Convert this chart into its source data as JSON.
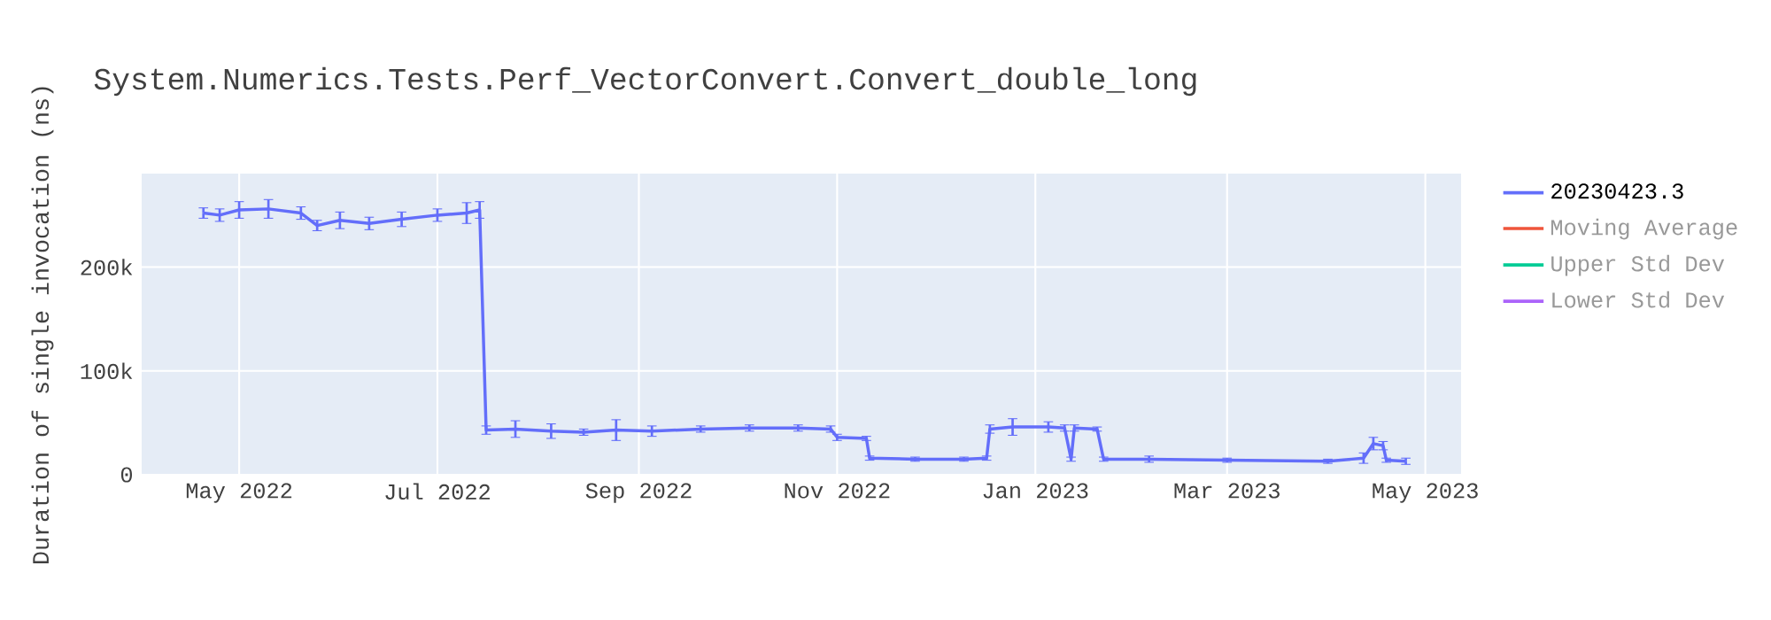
{
  "chart_data": {
    "type": "line",
    "title": "System.Numerics.Tests.Perf_VectorConvert.Convert_double_long",
    "ylabel": "Duration of single invocation (ns)",
    "x": [
      "2022-04-20",
      "2022-04-25",
      "2022-05-01",
      "2022-05-10",
      "2022-05-20",
      "2022-05-25",
      "2022-06-01",
      "2022-06-10",
      "2022-06-20",
      "2022-07-01",
      "2022-07-10",
      "2022-07-14",
      "2022-07-16",
      "2022-07-25",
      "2022-08-05",
      "2022-08-15",
      "2022-08-25",
      "2022-09-05",
      "2022-09-20",
      "2022-10-05",
      "2022-10-20",
      "2022-10-30",
      "2022-11-01",
      "2022-11-10",
      "2022-11-11",
      "2022-11-25",
      "2022-12-10",
      "2022-12-17",
      "2022-12-18",
      "2022-12-25",
      "2023-01-05",
      "2023-01-10",
      "2023-01-12",
      "2023-01-13",
      "2023-01-20",
      "2023-01-22",
      "2023-02-05",
      "2023-03-01",
      "2023-04-01",
      "2023-04-12",
      "2023-04-15",
      "2023-04-18",
      "2023-04-19",
      "2023-04-25"
    ],
    "series": [
      {
        "name": "20230423.3",
        "color": "#636efa",
        "values": [
          252000,
          250000,
          255000,
          256000,
          252000,
          240000,
          245000,
          242000,
          246000,
          250000,
          252000,
          255000,
          43000,
          44000,
          42000,
          41000,
          43000,
          42000,
          44000,
          45000,
          45000,
          44000,
          36000,
          35000,
          16000,
          15000,
          15000,
          16000,
          44000,
          46000,
          46000,
          45000,
          15000,
          45000,
          44000,
          15000,
          15000,
          14000,
          13000,
          16000,
          30000,
          28000,
          14000,
          13000
        ],
        "errors": [
          5000,
          6000,
          8000,
          9000,
          6000,
          5000,
          8000,
          6000,
          7000,
          6000,
          10000,
          8000,
          4000,
          8000,
          7000,
          3000,
          10000,
          5000,
          3000,
          3000,
          3000,
          3000,
          3000,
          2000,
          2000,
          2000,
          2000,
          2000,
          4000,
          8000,
          5000,
          3000,
          2000,
          3000,
          2000,
          2000,
          3000,
          2000,
          2000,
          5000,
          6000,
          4000,
          2000,
          3000
        ]
      },
      {
        "name": "Moving Average",
        "color": "#ef553b",
        "values": [
          null,
          null,
          null,
          null,
          null,
          null,
          null,
          null,
          null,
          null,
          null,
          null,
          null,
          null,
          null,
          null,
          null,
          null,
          null,
          null,
          null,
          null,
          null,
          null,
          null,
          null,
          null,
          null,
          null,
          null,
          null,
          null,
          null,
          null,
          null,
          null,
          null,
          null,
          null,
          null,
          null,
          null,
          null,
          null
        ]
      },
      {
        "name": "Upper Std Dev",
        "color": "#00cc96",
        "values": [
          null,
          null,
          null,
          null,
          null,
          null,
          null,
          null,
          null,
          null,
          null,
          null,
          null,
          null,
          null,
          null,
          null,
          null,
          null,
          null,
          null,
          null,
          null,
          null,
          null,
          null,
          null,
          null,
          null,
          null,
          null,
          null,
          null,
          null,
          null,
          null,
          null,
          null,
          null,
          null,
          null,
          null,
          null,
          null
        ]
      },
      {
        "name": "Lower Std Dev",
        "color": "#ab63fa",
        "values": [
          null,
          null,
          null,
          null,
          null,
          null,
          null,
          null,
          null,
          null,
          null,
          null,
          null,
          null,
          null,
          null,
          null,
          null,
          null,
          null,
          null,
          null,
          null,
          null,
          null,
          null,
          null,
          null,
          null,
          null,
          null,
          null,
          null,
          null,
          null,
          null,
          null,
          null,
          null,
          null,
          null,
          null,
          null,
          null
        ]
      }
    ],
    "xlim": [
      "2022-04-01",
      "2023-05-12"
    ],
    "ylim": [
      0,
      290000
    ],
    "xticks": [
      {
        "value": "2022-05-01",
        "label": "May 2022"
      },
      {
        "value": "2022-07-01",
        "label": "Jul 2022"
      },
      {
        "value": "2022-09-01",
        "label": "Sep 2022"
      },
      {
        "value": "2022-11-01",
        "label": "Nov 2022"
      },
      {
        "value": "2023-01-01",
        "label": "Jan 2023"
      },
      {
        "value": "2023-03-01",
        "label": "Mar 2023"
      },
      {
        "value": "2023-05-01",
        "label": "May 2023"
      }
    ],
    "yticks": [
      0,
      {
        "value": 100000,
        "label": "100k"
      },
      {
        "value": 200000,
        "label": "200k"
      }
    ],
    "grid": true,
    "legend": "top right",
    "marker": "none",
    "line_style": "solid"
  }
}
